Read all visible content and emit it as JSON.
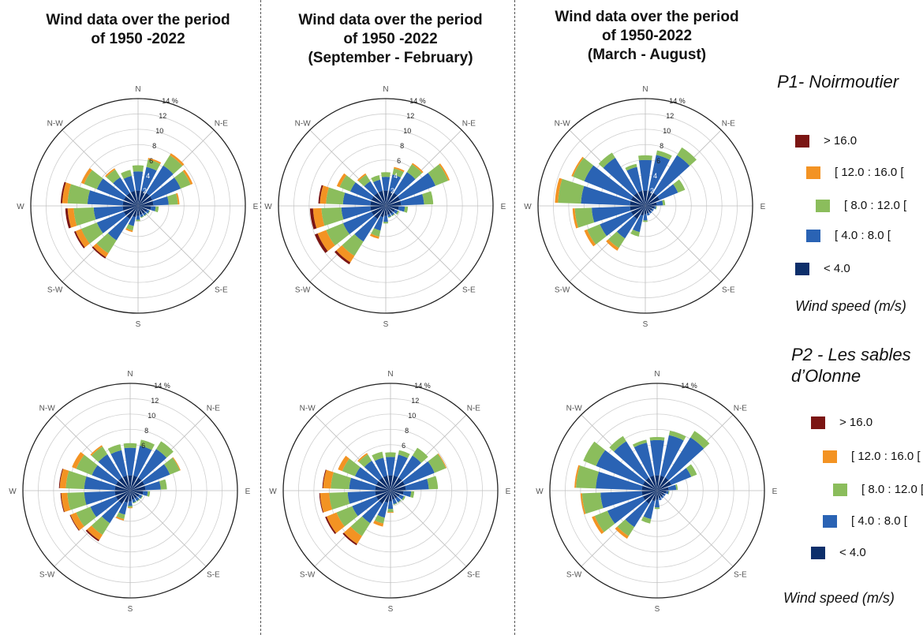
{
  "titles": [
    "Wind data over the period\nof 1950 -2022",
    "Wind data over the period\nof 1950 -2022\n(September - February)",
    "Wind data over the period\nof 1950-2022\n(March - August)"
  ],
  "sites": {
    "p1": "P1- Noirmoutier",
    "p2": "P2 - Les sables\nd’Olonne"
  },
  "wind_speed_label": "Wind speed (m/s)",
  "legend": [
    {
      "label": "> 16.0",
      "color": "#7b1513"
    },
    {
      "label": "[ 12.0 : 16.0 [",
      "color": "#f39323"
    },
    {
      "label": "[ 8.0 : 12.0 [",
      "color": "#8bbd5c"
    },
    {
      "label": "[ 4.0 : 8.0 [",
      "color": "#2a63b4"
    },
    {
      "label": "< 4.0",
      "color": "#0d2f6b"
    }
  ],
  "chart_data": [
    {
      "type": "polar-stacked-bar",
      "site": "P1- Noirmoutier",
      "period": "1950 -2022",
      "max_percent": 14,
      "radial_ticks": [
        "2",
        "4",
        "6",
        "8",
        "10",
        "12",
        "14 %"
      ],
      "bands": [
        "< 4.0",
        "[ 4.0 : 8.0 [",
        "[ 8.0 : 12.0 [",
        "[ 12.0 : 16.0 [",
        "> 16.0"
      ],
      "sectors": 18,
      "values": [
        [
          2,
          2.5,
          0.8,
          0,
          0
        ],
        [
          2,
          3.2,
          1.0,
          0.2,
          0
        ],
        [
          2,
          4.2,
          1.6,
          0.3,
          0
        ],
        [
          2,
          4.0,
          1.4,
          0.3,
          0
        ],
        [
          2,
          2.0,
          1.2,
          0.2,
          0
        ],
        [
          1.7,
          0.6,
          0.4,
          0,
          0
        ],
        [
          1.3,
          0.3,
          0.1,
          0,
          0
        ],
        [
          1.2,
          0.3,
          0.1,
          0,
          0
        ],
        [
          1.2,
          0.3,
          0.1,
          0,
          0
        ],
        [
          1.3,
          0.5,
          0.2,
          0,
          0
        ],
        [
          1.5,
          1.2,
          0.6,
          0.2,
          0
        ],
        [
          2,
          3.3,
          2.0,
          0.6,
          0.2
        ],
        [
          2,
          3.8,
          2.2,
          0.8,
          0.2
        ],
        [
          2,
          3.8,
          2.6,
          0.8,
          0.3
        ],
        [
          2,
          4.6,
          2.6,
          0.7,
          0.2
        ],
        [
          2,
          3.8,
          1.8,
          0.4,
          0
        ],
        [
          2,
          2.4,
          1.2,
          0.2,
          0
        ],
        [
          2,
          2.0,
          0.8,
          0,
          0
        ]
      ]
    },
    {
      "type": "polar-stacked-bar",
      "site": "P1- Noirmoutier",
      "period": "September - February",
      "max_percent": 14,
      "radial_ticks": [
        "2",
        "4",
        "6",
        "8",
        "10",
        "12",
        "14 %"
      ],
      "bands": [
        "< 4.0",
        "[ 4.0 : 8.0 [",
        "[ 8.0 : 12.0 [",
        "[ 12.0 : 16.0 [",
        "> 16.0"
      ],
      "sectors": 18,
      "values": [
        [
          2,
          1.8,
          0.6,
          0,
          0
        ],
        [
          2,
          2.2,
          0.8,
          0.2,
          0
        ],
        [
          2,
          3.2,
          1.2,
          0.2,
          0
        ],
        [
          2,
          5.0,
          1.8,
          0.2,
          0
        ],
        [
          2,
          3.0,
          1.2,
          0,
          0
        ],
        [
          1.7,
          0.8,
          0.4,
          0,
          0
        ],
        [
          1.3,
          0.4,
          0.2,
          0,
          0
        ],
        [
          1.2,
          0.3,
          0.1,
          0,
          0
        ],
        [
          1.2,
          0.3,
          0.1,
          0,
          0
        ],
        [
          1.3,
          0.8,
          0.2,
          0,
          0
        ],
        [
          1.5,
          1.8,
          0.8,
          0.3,
          0
        ],
        [
          2,
          3.5,
          2.2,
          1.0,
          0.3
        ],
        [
          2,
          4.0,
          2.4,
          1.2,
          0.4
        ],
        [
          2,
          3.8,
          2.6,
          1.1,
          0.4
        ],
        [
          2,
          3.6,
          2.2,
          0.8,
          0.2
        ],
        [
          2,
          3.0,
          1.5,
          0.4,
          0
        ],
        [
          2,
          1.8,
          1.0,
          0.2,
          0
        ],
        [
          2,
          1.5,
          0.6,
          0,
          0
        ]
      ]
    },
    {
      "type": "polar-stacked-bar",
      "site": "P1- Noirmoutier",
      "period": "March - August",
      "max_percent": 14,
      "radial_ticks": [
        "2",
        "4",
        "6",
        "8",
        "10",
        "12",
        "14 %"
      ],
      "bands": [
        "< 4.0",
        "[ 4.0 : 8.0 [",
        "[ 8.0 : 12.0 [",
        "[ 12.0 : 16.0 [",
        "> 16.0"
      ],
      "sectors": 18,
      "values": [
        [
          2,
          4.0,
          0.6,
          0,
          0
        ],
        [
          2,
          4.8,
          0.6,
          0,
          0
        ],
        [
          2,
          5.8,
          1.2,
          0,
          0
        ],
        [
          2,
          2.6,
          1.0,
          0,
          0
        ],
        [
          1.5,
          0.8,
          0.3,
          0,
          0
        ],
        [
          1.2,
          0.2,
          0.1,
          0,
          0
        ],
        [
          1.0,
          0.2,
          0,
          0,
          0
        ],
        [
          1.0,
          0.2,
          0,
          0,
          0
        ],
        [
          1.0,
          0.3,
          0,
          0,
          0
        ],
        [
          1.1,
          0.8,
          0.2,
          0,
          0
        ],
        [
          1.3,
          2.2,
          0.6,
          0,
          0
        ],
        [
          2,
          3.0,
          1.5,
          0.4,
          0
        ],
        [
          2,
          4.4,
          1.8,
          0.4,
          0
        ],
        [
          2,
          5.0,
          2.2,
          0.3,
          0
        ],
        [
          2,
          6.4,
          3.0,
          0.4,
          0
        ],
        [
          2,
          6.6,
          1.6,
          0.2,
          0
        ],
        [
          2,
          5.4,
          0.8,
          0,
          0
        ],
        [
          2,
          3.2,
          0.4,
          0,
          0
        ]
      ]
    },
    {
      "type": "polar-stacked-bar",
      "site": "P2 - Les sables d’Olonne",
      "period": "1950 -2022",
      "max_percent": 14,
      "radial_ticks": [
        "6",
        "8",
        "10",
        "12",
        "14 %"
      ],
      "bands": [
        "< 4.0",
        "[ 4.0 : 8.0 [",
        "[ 8.0 : 12.0 [",
        "[ 12.0 : 16.0 [",
        "> 16.0"
      ],
      "sectors": 18,
      "values": [
        [
          2,
          3.6,
          0.6,
          0,
          0
        ],
        [
          2,
          4.0,
          0.8,
          0,
          0
        ],
        [
          2,
          4.4,
          1.2,
          0,
          0
        ],
        [
          2,
          3.6,
          1.4,
          0.1,
          0
        ],
        [
          2,
          2.0,
          0.8,
          0,
          0
        ],
        [
          1.7,
          0.6,
          0.3,
          0,
          0
        ],
        [
          1.3,
          0.4,
          0.1,
          0,
          0
        ],
        [
          1.2,
          0.4,
          0.1,
          0,
          0
        ],
        [
          1.2,
          0.4,
          0.1,
          0,
          0
        ],
        [
          1.4,
          0.6,
          0.2,
          0.1,
          0
        ],
        [
          1.6,
          1.6,
          0.6,
          0.2,
          0
        ],
        [
          2,
          3.0,
          1.8,
          0.8,
          0.2
        ],
        [
          2,
          3.6,
          2.0,
          0.8,
          0.1
        ],
        [
          2,
          4.0,
          2.2,
          0.8,
          0.1
        ],
        [
          2,
          4.0,
          2.4,
          0.8,
          0.1
        ],
        [
          2,
          3.4,
          2.2,
          0.6,
          0
        ],
        [
          2,
          3.6,
          1.2,
          0.2,
          0
        ],
        [
          2,
          3.4,
          0.8,
          0,
          0
        ]
      ]
    },
    {
      "type": "polar-stacked-bar",
      "site": "P2 - Les sables d’Olonne",
      "period": "September - February",
      "max_percent": 14,
      "radial_ticks": [
        "6",
        "8",
        "10",
        "12",
        "14 %"
      ],
      "bands": [
        "< 4.0",
        "[ 4.0 : 8.0 [",
        "[ 8.0 : 12.0 [",
        "[ 12.0 : 16.0 [",
        "> 16.0"
      ],
      "sectors": 18,
      "values": [
        [
          2,
          2.4,
          0.6,
          0,
          0
        ],
        [
          2,
          2.8,
          0.6,
          0,
          0
        ],
        [
          2,
          3.4,
          1.2,
          0,
          0
        ],
        [
          2,
          4.2,
          1.6,
          0.1,
          0
        ],
        [
          2,
          3.0,
          1.2,
          0,
          0
        ],
        [
          1.7,
          1.0,
          0.4,
          0,
          0
        ],
        [
          1.3,
          0.6,
          0.2,
          0,
          0
        ],
        [
          1.2,
          0.6,
          0.1,
          0,
          0
        ],
        [
          1.2,
          0.6,
          0.1,
          0,
          0
        ],
        [
          1.4,
          1.0,
          0.4,
          0.1,
          0
        ],
        [
          1.6,
          2.0,
          0.8,
          0.4,
          0
        ],
        [
          2,
          3.0,
          2.0,
          1.2,
          0.2
        ],
        [
          2,
          3.4,
          2.2,
          1.4,
          0.2
        ],
        [
          2,
          3.6,
          2.4,
          1.2,
          0.1
        ],
        [
          2,
          3.4,
          2.4,
          1.0,
          0.1
        ],
        [
          2,
          3.0,
          1.8,
          0.6,
          0
        ],
        [
          2,
          2.6,
          1.0,
          0.2,
          0
        ],
        [
          2,
          2.4,
          0.8,
          0,
          0
        ]
      ]
    },
    {
      "type": "polar-stacked-bar",
      "site": "P2 - Les sables d’Olonne",
      "period": "March - August",
      "max_percent": 14,
      "radial_ticks": [
        "14 %"
      ],
      "bands": [
        "< 4.0",
        "[ 4.0 : 8.0 [",
        "[ 8.0 : 12.0 [",
        "[ 12.0 : 16.0 [",
        "> 16.0"
      ],
      "sectors": 18,
      "values": [
        [
          2,
          4.6,
          0.4,
          0,
          0
        ],
        [
          2,
          5.4,
          0.6,
          0,
          0
        ],
        [
          2,
          6.2,
          1.0,
          0,
          0
        ],
        [
          2,
          2.8,
          0.8,
          0,
          0
        ],
        [
          1.5,
          1.0,
          0.2,
          0,
          0
        ],
        [
          1.2,
          0.3,
          0.1,
          0,
          0
        ],
        [
          1.0,
          0.2,
          0,
          0,
          0
        ],
        [
          1.0,
          0.2,
          0,
          0,
          0
        ],
        [
          1.0,
          0.3,
          0,
          0,
          0
        ],
        [
          1.2,
          1.0,
          0.2,
          0,
          0
        ],
        [
          1.4,
          2.4,
          0.6,
          0,
          0
        ],
        [
          2,
          3.6,
          1.4,
          0.4,
          0
        ],
        [
          2,
          5.0,
          1.8,
          0.4,
          0
        ],
        [
          2,
          5.4,
          2.4,
          0.2,
          0
        ],
        [
          2,
          6.0,
          2.6,
          0.2,
          0
        ],
        [
          2,
          6.6,
          1.8,
          0,
          0
        ],
        [
          2,
          5.6,
          0.8,
          0,
          0
        ],
        [
          2,
          4.4,
          0.4,
          0,
          0
        ]
      ]
    }
  ]
}
